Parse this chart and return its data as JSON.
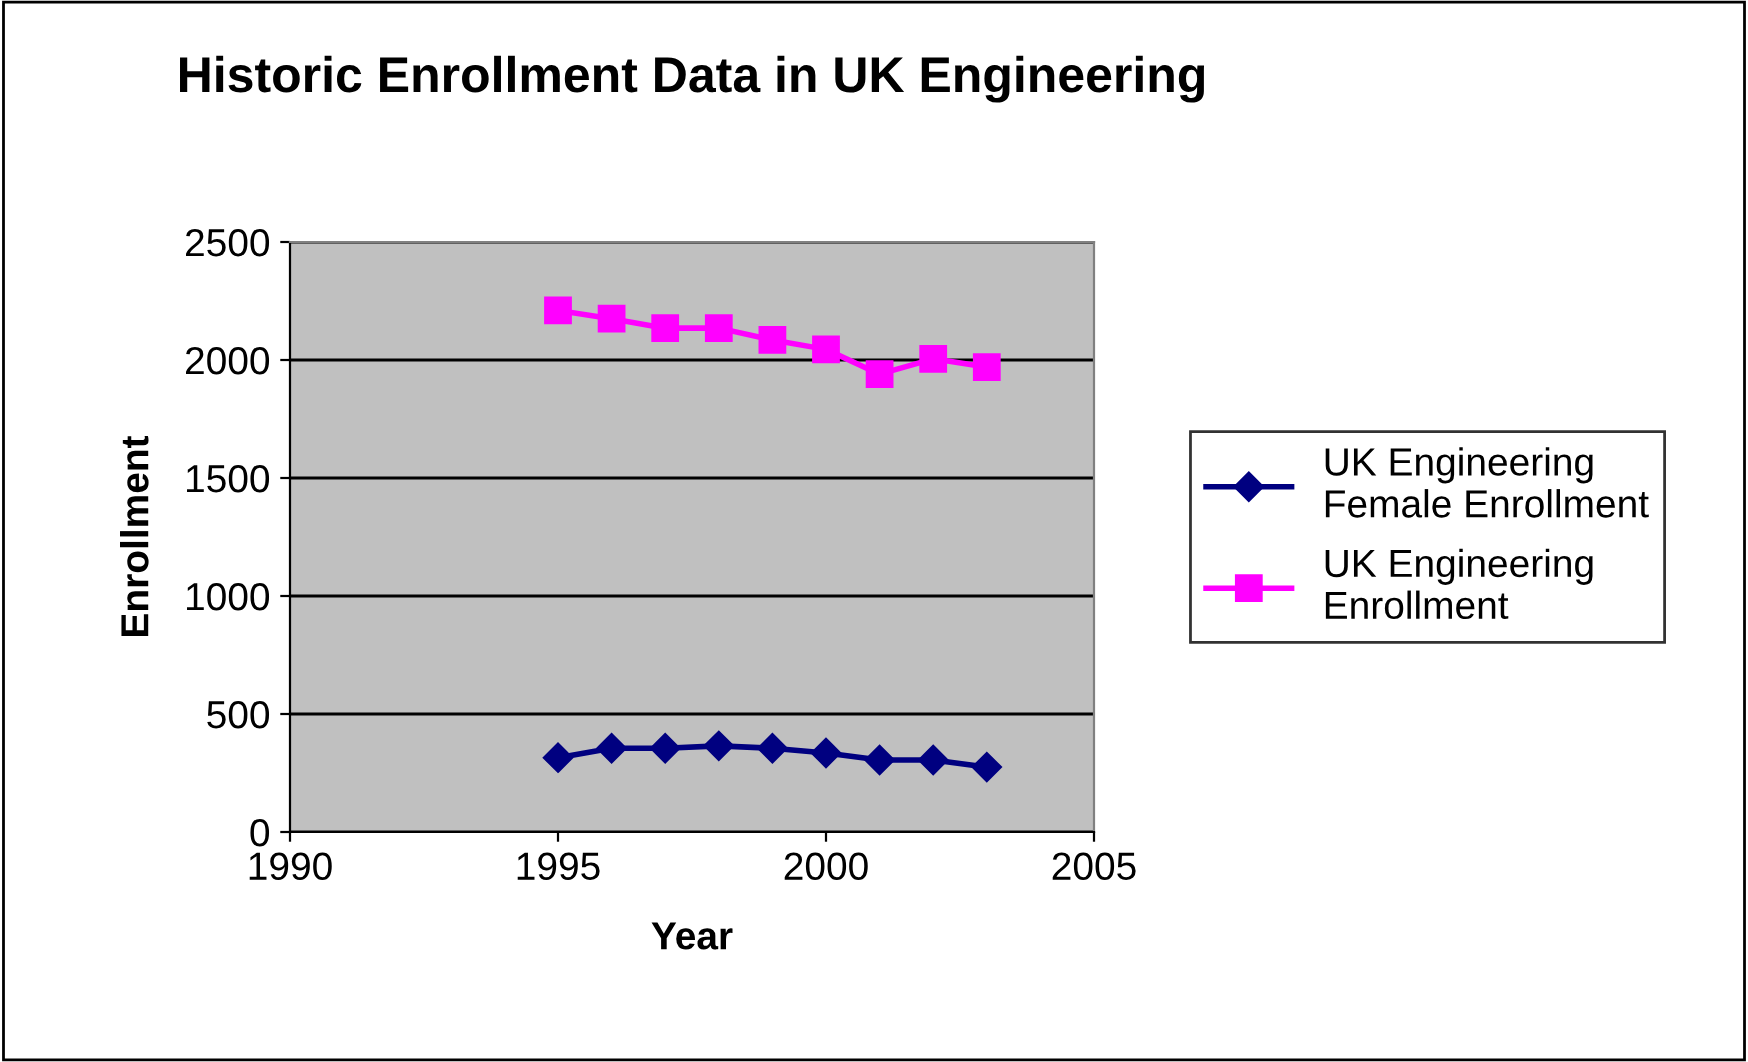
{
  "chart_data": {
    "type": "line",
    "title": "Historic Enrollment Data in UK Engineering",
    "xlabel": "Year",
    "ylabel": "Enrollment",
    "x": [
      1995,
      1996,
      1997,
      1998,
      1999,
      2000,
      2001,
      2002,
      2003
    ],
    "series": [
      {
        "name": "UK Engineering\nFemale Enrollment",
        "color": "#000080",
        "marker": "diamond",
        "values": [
          315,
          355,
          355,
          365,
          355,
          335,
          305,
          305,
          275
        ]
      },
      {
        "name": "UK Engineering\nEnrollment",
        "color": "#ff00ff",
        "marker": "square",
        "values": [
          2210,
          2175,
          2135,
          2135,
          2085,
          2045,
          1940,
          2005,
          1970
        ]
      }
    ],
    "xlim": [
      1990,
      2005
    ],
    "xticks": [
      1990,
      1995,
      2000,
      2005
    ],
    "ylim": [
      0,
      2500
    ],
    "yticks": [
      0,
      500,
      1000,
      1500,
      2000,
      2500
    ],
    "grid": "y",
    "legend": "right"
  }
}
